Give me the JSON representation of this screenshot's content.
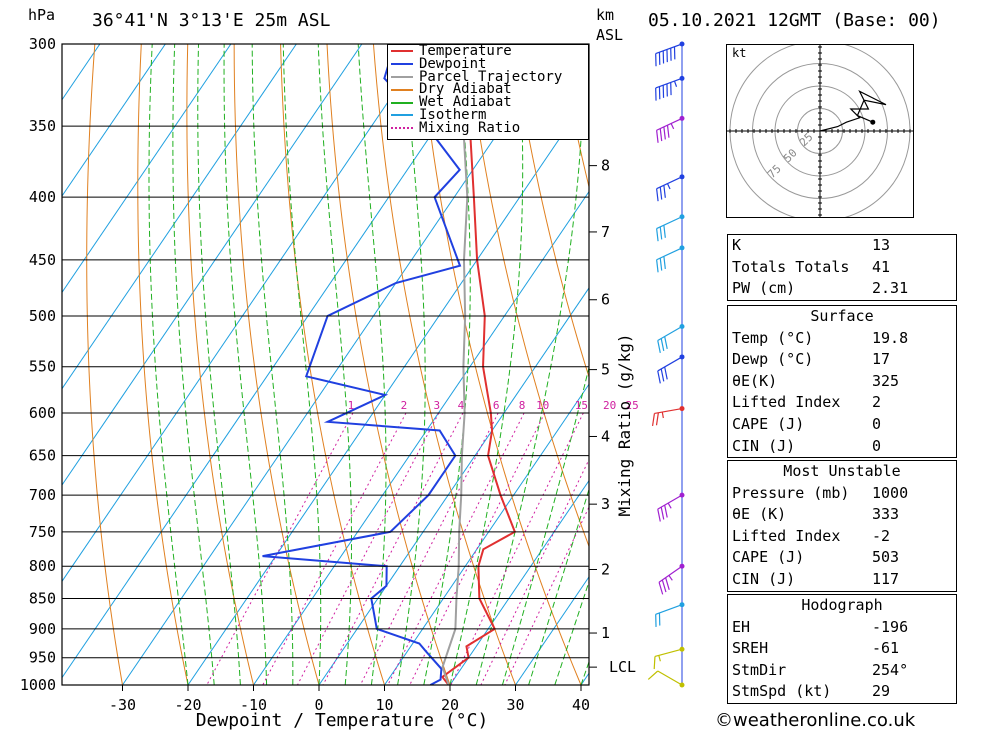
{
  "header": {
    "pressure_unit": "hPa",
    "location": "36°41'N  3°13'E  25m  ASL",
    "km_label": "km",
    "asl_label": "ASL",
    "datetime": "05.10.2021  12GMT  (Base: 00)"
  },
  "credit": "©weatheronline.co.uk",
  "colors": {
    "temperature": "#e03030",
    "dewpoint": "#2040e0",
    "parcel": "#a0a0a0",
    "dry_adiabat": "#e08020",
    "wet_adiabat": "#20b020",
    "isotherm": "#20a0e0",
    "mixing_ratio": "#d020a0"
  },
  "chart_data": {
    "type": "line",
    "xlabel": "Dewpoint / Temperature (°C)",
    "ylabel": "hPa",
    "secondary_ylabel": "Mixing Ratio (g/kg)",
    "x_ticks": [
      -30,
      -20,
      -10,
      0,
      10,
      20,
      30,
      40
    ],
    "pressure_ticks": [
      300,
      350,
      400,
      450,
      500,
      550,
      600,
      650,
      700,
      750,
      800,
      850,
      900,
      950,
      1000
    ],
    "height_ticks": [
      {
        "label": "8",
        "p": 377
      },
      {
        "label": "7",
        "p": 427
      },
      {
        "label": "6",
        "p": 485
      },
      {
        "label": "5",
        "p": 553
      },
      {
        "label": "4",
        "p": 627
      },
      {
        "label": "3",
        "p": 712
      },
      {
        "label": "2",
        "p": 805
      },
      {
        "label": "1",
        "p": 907
      },
      {
        "label": "LCL",
        "p": 967
      }
    ],
    "mixing_ratio_labels": [
      "1",
      "2",
      "3",
      "4",
      "6",
      "8",
      "10",
      "15",
      "20",
      "25"
    ],
    "legend": [
      "Temperature",
      "Dewpoint",
      "Parcel Trajectory",
      "Dry Adiabat",
      "Wet Adiabat",
      "Isotherm",
      "Mixing Ratio"
    ],
    "legend_position": "top-right",
    "series": [
      {
        "name": "Temperature",
        "points": [
          [
            1000,
            19.8
          ],
          [
            985,
            18
          ],
          [
            950,
            20
          ],
          [
            930,
            18.5
          ],
          [
            900,
            21
          ],
          [
            850,
            15.5
          ],
          [
            800,
            12
          ],
          [
            775,
            11
          ],
          [
            750,
            14
          ],
          [
            700,
            8
          ],
          [
            650,
            2
          ],
          [
            620,
            0
          ],
          [
            600,
            -2
          ],
          [
            550,
            -8
          ],
          [
            500,
            -13
          ],
          [
            450,
            -20
          ],
          [
            400,
            -27
          ],
          [
            350,
            -35
          ],
          [
            300,
            -45
          ]
        ]
      },
      {
        "name": "Dewpoint",
        "points": [
          [
            1000,
            17
          ],
          [
            990,
            18
          ],
          [
            970,
            17
          ],
          [
            940,
            13
          ],
          [
            925,
            11
          ],
          [
            900,
            3
          ],
          [
            850,
            -1
          ],
          [
            830,
            0
          ],
          [
            800,
            -2
          ],
          [
            785,
            -22
          ],
          [
            750,
            -5
          ],
          [
            700,
            -3
          ],
          [
            650,
            -3
          ],
          [
            620,
            -8
          ],
          [
            610,
            -26
          ],
          [
            580,
            -20
          ],
          [
            560,
            -34
          ],
          [
            500,
            -37
          ],
          [
            470,
            -30
          ],
          [
            455,
            -22
          ],
          [
            400,
            -33
          ],
          [
            380,
            -32
          ],
          [
            340,
            -45
          ],
          [
            320,
            -53
          ],
          [
            300,
            -55
          ]
        ]
      },
      {
        "name": "Parcel Trajectory",
        "points": [
          [
            1000,
            19.8
          ],
          [
            967,
            17
          ],
          [
            900,
            15
          ],
          [
            850,
            12
          ],
          [
            800,
            9
          ],
          [
            750,
            5.5
          ],
          [
            700,
            2
          ],
          [
            650,
            -2
          ],
          [
            600,
            -6
          ],
          [
            550,
            -11
          ],
          [
            500,
            -16
          ],
          [
            450,
            -22
          ],
          [
            400,
            -28
          ],
          [
            350,
            -36
          ],
          [
            300,
            -46
          ]
        ]
      }
    ],
    "hodograph": {
      "unit": "kt",
      "ring_labels": [
        "25",
        "50",
        "75"
      ],
      "path": [
        [
          0,
          0
        ],
        [
          8,
          2
        ],
        [
          12,
          4
        ],
        [
          18,
          6
        ],
        [
          14,
          10
        ],
        [
          22,
          10
        ],
        [
          18,
          18
        ],
        [
          30,
          12
        ],
        [
          20,
          14
        ],
        [
          17,
          7
        ],
        [
          24,
          4
        ]
      ]
    },
    "wind_barbs": [
      {
        "p": 300,
        "color": "#2040e0",
        "dir": 250,
        "spd": 60
      },
      {
        "p": 320,
        "color": "#2040e0",
        "dir": 250,
        "spd": 55
      },
      {
        "p": 345,
        "color": "#a020d0",
        "dir": 245,
        "spd": 45
      },
      {
        "p": 385,
        "color": "#2040e0",
        "dir": 245,
        "spd": 35
      },
      {
        "p": 415,
        "color": "#20a0e0",
        "dir": 245,
        "spd": 30
      },
      {
        "p": 440,
        "color": "#20a0e0",
        "dir": 245,
        "spd": 30
      },
      {
        "p": 510,
        "color": "#20a0e0",
        "dir": 240,
        "spd": 30
      },
      {
        "p": 540,
        "color": "#2040e0",
        "dir": 240,
        "spd": 30
      },
      {
        "p": 595,
        "color": "#e03030",
        "dir": 260,
        "spd": 25
      },
      {
        "p": 700,
        "color": "#a020d0",
        "dir": 240,
        "spd": 35
      },
      {
        "p": 800,
        "color": "#a020d0",
        "dir": 235,
        "spd": 35
      },
      {
        "p": 860,
        "color": "#20a0e0",
        "dir": 250,
        "spd": 20
      },
      {
        "p": 935,
        "color": "#c0c000",
        "dir": 255,
        "spd": 15
      },
      {
        "p": 1000,
        "color": "#c0c000",
        "dir": 300,
        "spd": 10
      }
    ]
  },
  "indices_table": [
    {
      "label": "K",
      "value": "13"
    },
    {
      "label": "Totals Totals",
      "value": "41"
    },
    {
      "label": "PW (cm)",
      "value": "2.31"
    }
  ],
  "surface_table": {
    "title": "Surface",
    "rows": [
      {
        "label": "Temp (°C)",
        "value": "19.8"
      },
      {
        "label": "Dewp (°C)",
        "value": "17"
      },
      {
        "label": "θE(K)",
        "value": "325"
      },
      {
        "label": "Lifted Index",
        "value": "2"
      },
      {
        "label": "CAPE (J)",
        "value": "0"
      },
      {
        "label": "CIN (J)",
        "value": "0"
      }
    ]
  },
  "unstable_table": {
    "title": "Most Unstable",
    "rows": [
      {
        "label": "Pressure (mb)",
        "value": "1000"
      },
      {
        "label": "θE (K)",
        "value": "333"
      },
      {
        "label": "Lifted Index",
        "value": "-2"
      },
      {
        "label": "CAPE (J)",
        "value": "503"
      },
      {
        "label": "CIN (J)",
        "value": "117"
      }
    ]
  },
  "hodograph_table": {
    "title": "Hodograph",
    "rows": [
      {
        "label": "EH",
        "value": "-196"
      },
      {
        "label": "SREH",
        "value": "-61"
      },
      {
        "label": "StmDir",
        "value": "254°"
      },
      {
        "label": "StmSpd (kt)",
        "value": "29"
      }
    ]
  }
}
